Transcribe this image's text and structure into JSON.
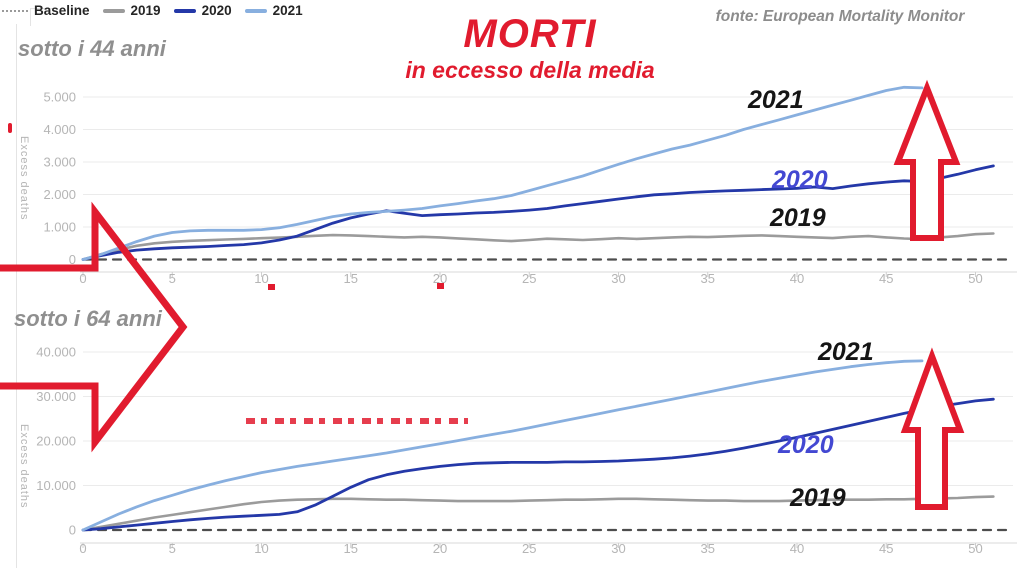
{
  "legend": {
    "items": [
      {
        "label": "Baseline",
        "swatch": "dotted",
        "color": "#9a9a9a"
      },
      {
        "label": "2019",
        "swatch": "bar",
        "color": "#9b9b9b"
      },
      {
        "label": "2020",
        "swatch": "bar",
        "color": "#2438a8"
      },
      {
        "label": "2021",
        "swatch": "bar",
        "color": "#88afdf"
      }
    ]
  },
  "header": {
    "title": "MORTI",
    "subtitle": "in eccesso della media",
    "source": "fonte: European Mortality Monitor",
    "accent_color": "#e11b2e"
  },
  "chart_data": [
    {
      "type": "line",
      "section_label": "sotto i 44 anni",
      "ylabel": "Excess deaths",
      "xlabel": "",
      "x_unit": "week of year",
      "xlim": [
        0,
        51
      ],
      "ylim": [
        0,
        5500
      ],
      "grid": true,
      "x_ticks": [
        0,
        5,
        10,
        15,
        20,
        25,
        30,
        35,
        40,
        45,
        50
      ],
      "y_ticks": [
        {
          "value": 0,
          "label": "0"
        },
        {
          "value": 1000,
          "label": "1.000"
        },
        {
          "value": 2000,
          "label": "2.000"
        },
        {
          "value": 3000,
          "label": "3.000"
        },
        {
          "value": 4000,
          "label": "4.000"
        },
        {
          "value": 5000,
          "label": "5.000"
        }
      ],
      "series": [
        {
          "name": "Baseline",
          "color": "#4d4d4d",
          "dash": true,
          "width": 2.2,
          "constant": 0
        },
        {
          "name": "2019",
          "color": "#9b9b9b",
          "width": 2.6,
          "values": [
            0,
            160,
            300,
            420,
            500,
            545,
            575,
            595,
            615,
            635,
            655,
            675,
            700,
            730,
            750,
            740,
            720,
            700,
            680,
            700,
            680,
            650,
            620,
            590,
            565,
            600,
            640,
            620,
            600,
            625,
            655,
            635,
            655,
            680,
            700,
            690,
            710,
            730,
            740,
            720,
            700,
            680,
            660,
            700,
            720,
            680,
            645,
            625,
            680,
            720,
            780,
            800
          ]
        },
        {
          "name": "2020",
          "color": "#2438a8",
          "width": 2.8,
          "values": [
            0,
            120,
            220,
            290,
            330,
            360,
            380,
            400,
            430,
            460,
            510,
            600,
            720,
            920,
            1120,
            1280,
            1400,
            1500,
            1420,
            1350,
            1380,
            1400,
            1430,
            1450,
            1480,
            1520,
            1570,
            1650,
            1720,
            1790,
            1860,
            1930,
            1990,
            2020,
            2060,
            2090,
            2110,
            2130,
            2150,
            2170,
            2190,
            2230,
            2180,
            2260,
            2330,
            2380,
            2420,
            2400,
            2500,
            2620,
            2760,
            2880
          ]
        },
        {
          "name": "2021",
          "color": "#88afdf",
          "width": 2.8,
          "values": [
            0,
            150,
            350,
            550,
            720,
            830,
            880,
            900,
            900,
            900,
            920,
            980,
            1080,
            1200,
            1320,
            1400,
            1450,
            1480,
            1520,
            1570,
            1650,
            1720,
            1800,
            1870,
            1970,
            2120,
            2270,
            2420,
            2570,
            2750,
            2930,
            3100,
            3250,
            3400,
            3520,
            3670,
            3820,
            4000,
            4150,
            4300,
            4450,
            4600,
            4750,
            4900,
            5050,
            5200,
            5300,
            5280
          ]
        }
      ],
      "annotations": [
        {
          "label": "2021",
          "color": "#151515"
        },
        {
          "label": "2020",
          "color": "#4348d2"
        },
        {
          "label": "2019",
          "color": "#151515"
        }
      ]
    },
    {
      "type": "line",
      "section_label": "sotto i 64 anni",
      "ylabel": "Excess deaths",
      "xlabel": "",
      "x_unit": "week of year",
      "xlim": [
        0,
        51
      ],
      "ylim": [
        0,
        42000
      ],
      "grid": true,
      "x_ticks": [
        0,
        5,
        10,
        15,
        20,
        25,
        30,
        35,
        40,
        45,
        50
      ],
      "y_ticks": [
        {
          "value": 0,
          "label": "0"
        },
        {
          "value": 10000,
          "label": "10.000"
        },
        {
          "value": 20000,
          "label": "20.000"
        },
        {
          "value": 30000,
          "label": "30.000"
        },
        {
          "value": 40000,
          "label": "40.000"
        }
      ],
      "series": [
        {
          "name": "Baseline",
          "color": "#4d4d4d",
          "dash": true,
          "width": 2.2,
          "constant": 0
        },
        {
          "name": "2019",
          "color": "#9b9b9b",
          "width": 2.6,
          "values": [
            0,
            700,
            1400,
            2100,
            2800,
            3400,
            4000,
            4600,
            5200,
            5800,
            6300,
            6600,
            6800,
            6900,
            7000,
            7000,
            6900,
            6800,
            6800,
            6700,
            6600,
            6500,
            6500,
            6500,
            6500,
            6600,
            6700,
            6800,
            6800,
            6900,
            7000,
            7000,
            6900,
            6800,
            6700,
            6600,
            6600,
            6500,
            6500,
            6500,
            6600,
            6700,
            6800,
            6800,
            6800,
            6900,
            6900,
            7000,
            7100,
            7200,
            7400,
            7500
          ]
        },
        {
          "name": "2020",
          "color": "#2438a8",
          "width": 2.8,
          "values": [
            0,
            300,
            700,
            1100,
            1500,
            1900,
            2300,
            2600,
            2900,
            3100,
            3300,
            3500,
            4100,
            5600,
            7600,
            9600,
            11300,
            12400,
            13200,
            13800,
            14300,
            14700,
            15000,
            15100,
            15200,
            15200,
            15200,
            15300,
            15300,
            15400,
            15500,
            15700,
            15900,
            16200,
            16600,
            17100,
            17700,
            18400,
            19200,
            20000,
            20800,
            21700,
            22600,
            23500,
            24400,
            25300,
            26200,
            27000,
            27800,
            28400,
            29000,
            29400
          ]
        },
        {
          "name": "2021",
          "color": "#88afdf",
          "width": 2.8,
          "values": [
            0,
            1800,
            3600,
            5200,
            6600,
            7800,
            9000,
            10100,
            11100,
            12000,
            12900,
            13600,
            14300,
            14900,
            15500,
            16100,
            16700,
            17300,
            18000,
            18700,
            19400,
            20100,
            20800,
            21500,
            22200,
            23000,
            23800,
            24600,
            25400,
            26200,
            27000,
            27800,
            28600,
            29400,
            30200,
            31000,
            31800,
            32600,
            33400,
            34100,
            34800,
            35500,
            36100,
            36700,
            37200,
            37600,
            37900,
            38000
          ]
        }
      ],
      "annotations": [
        {
          "label": "2021",
          "color": "#151515"
        },
        {
          "label": "2020",
          "color": "#4348d2"
        },
        {
          "label": "2019",
          "color": "#151515"
        }
      ]
    }
  ]
}
